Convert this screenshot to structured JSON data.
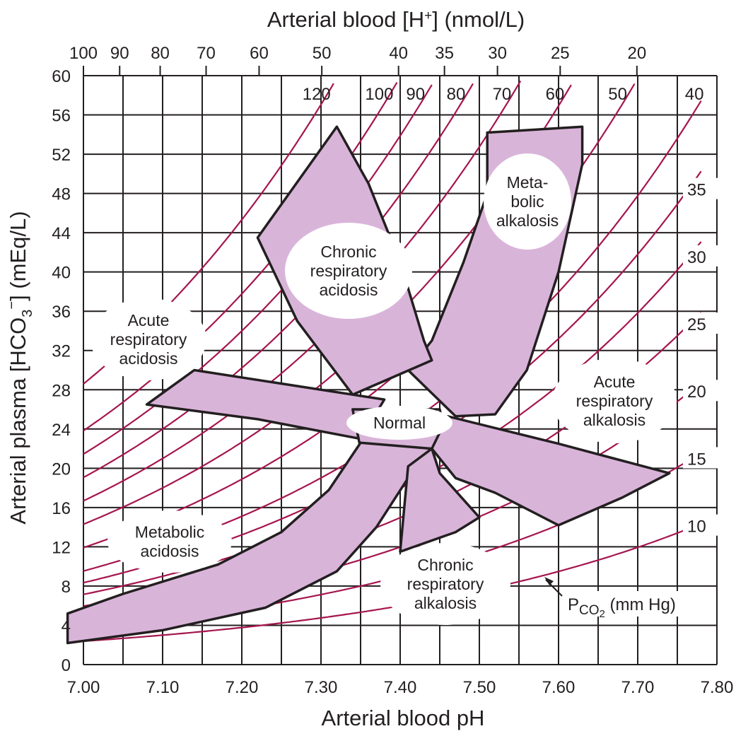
{
  "chart_data": {
    "type": "line",
    "title": "",
    "xlabel": "Arterial blood pH",
    "ylabel": "Arterial plasma [HCO3−] (mEq/L)",
    "ylabel_parts": {
      "main": "Arterial plasma [HCO",
      "sub": "3",
      "sup": "−",
      "end": "] (mEq/L)"
    },
    "x2label": "Arterial blood [H+] (nmol/L)",
    "x2label_parts": {
      "main": "Arterial blood [H",
      "sup": "+",
      "end": "] (nmol/L)"
    },
    "xlim": [
      7.0,
      7.8
    ],
    "ylim": [
      0,
      60
    ],
    "grid": true,
    "x_ticks": [
      "7.00",
      "7.10",
      "7.20",
      "7.30",
      "7.40",
      "7.50",
      "7.60",
      "7.70",
      "7.80"
    ],
    "y_ticks": [
      "0",
      "4",
      "8",
      "12",
      "16",
      "20",
      "24",
      "28",
      "32",
      "36",
      "40",
      "44",
      "48",
      "52",
      "56",
      "60"
    ],
    "h_ticks": [
      {
        "label": "100",
        "value": 100
      },
      {
        "label": "90",
        "value": 90
      },
      {
        "label": "80",
        "value": 80
      },
      {
        "label": "70",
        "value": 70
      },
      {
        "label": "60",
        "value": 60
      },
      {
        "label": "50",
        "value": 50
      },
      {
        "label": "40",
        "value": 40
      },
      {
        "label": "35",
        "value": 35
      },
      {
        "label": "30",
        "value": 30
      },
      {
        "label": "25",
        "value": 25
      },
      {
        "label": "20",
        "value": 20
      }
    ],
    "pco2_isobars_mmHg": [
      120,
      100,
      90,
      80,
      70,
      60,
      50,
      40,
      35,
      30,
      25,
      20,
      15,
      10
    ],
    "isobar_label_top": [
      "120",
      "100",
      "90",
      "80",
      "70",
      "60",
      "50",
      "40"
    ],
    "isobar_label_right": [
      "35",
      "30",
      "25",
      "20",
      "15",
      "10"
    ],
    "isobar_key": {
      "prefix": "P",
      "sub": "CO",
      "sub2": "2",
      "suffix": " (mm Hg)"
    },
    "regions": [
      {
        "label": [
          "Meta-",
          "bolic",
          "alkalosis"
        ],
        "points": [
          [
            7.51,
            54.2
          ],
          [
            7.63,
            54.8
          ],
          [
            7.63,
            51
          ],
          [
            7.6,
            40
          ],
          [
            7.56,
            30
          ],
          [
            7.52,
            25.5
          ],
          [
            7.47,
            25.3
          ],
          [
            7.41,
            30
          ],
          [
            7.44,
            33
          ],
          [
            7.48,
            41
          ],
          [
            7.51,
            48
          ]
        ]
      },
      {
        "label": [
          "Chronic",
          "respiratory",
          "acidosis"
        ],
        "points": [
          [
            7.32,
            54.8
          ],
          [
            7.22,
            43.5
          ],
          [
            7.27,
            35
          ],
          [
            7.34,
            27.5
          ],
          [
            7.44,
            31
          ],
          [
            7.43,
            33
          ],
          [
            7.4,
            41
          ],
          [
            7.36,
            49
          ]
        ]
      },
      {
        "label": [
          "Acute",
          "respiratory",
          "acidosis"
        ],
        "points": [
          [
            7.14,
            30
          ],
          [
            7.08,
            26.5
          ],
          [
            7.22,
            25
          ],
          [
            7.35,
            23
          ],
          [
            7.38,
            27
          ]
        ]
      },
      {
        "label": [
          "Normal"
        ],
        "points": [
          [
            7.34,
            26
          ],
          [
            7.45,
            26
          ],
          [
            7.46,
            22
          ],
          [
            7.35,
            22
          ]
        ]
      },
      {
        "label": [
          "Acute",
          "respiratory",
          "alkalosis"
        ],
        "points": [
          [
            7.46,
            25.3
          ],
          [
            7.6,
            22.5
          ],
          [
            7.67,
            21
          ],
          [
            7.74,
            19.5
          ],
          [
            7.68,
            17
          ],
          [
            7.6,
            14.2
          ],
          [
            7.52,
            17.5
          ],
          [
            7.47,
            19
          ],
          [
            7.44,
            22
          ]
        ]
      },
      {
        "label": [
          "Metabolic",
          "acidosis"
        ],
        "points": [
          [
            6.98,
            5.2
          ],
          [
            7.05,
            7.2
          ],
          [
            7.17,
            10.2
          ],
          [
            7.25,
            13.5
          ],
          [
            7.31,
            17.8
          ],
          [
            7.35,
            22.6
          ],
          [
            7.44,
            22
          ],
          [
            7.41,
            19
          ],
          [
            7.37,
            14
          ],
          [
            7.32,
            9.5
          ],
          [
            7.23,
            5.8
          ],
          [
            7.1,
            3.5
          ],
          [
            6.98,
            2.2
          ]
        ]
      },
      {
        "label": [
          "Chronic",
          "respiratory",
          "alkalosis"
        ],
        "points": [
          [
            7.41,
            20.2
          ],
          [
            7.4,
            11.5
          ],
          [
            7.47,
            13.5
          ],
          [
            7.5,
            15
          ],
          [
            7.45,
            19.5
          ],
          [
            7.44,
            22
          ]
        ]
      }
    ]
  },
  "labels": {
    "bubble_normal": "Normal",
    "bubble_meta": [
      "Meta-",
      "bolic",
      "alkalosis"
    ],
    "bubble_chronic_acid": [
      "Chronic",
      "respiratory",
      "acidosis"
    ],
    "bubble_acute_acid": [
      "Acute",
      "respiratory",
      "acidosis"
    ],
    "bubble_acute_alk": [
      "Acute",
      "respiratory",
      "alkalosis"
    ],
    "bubble_met_acid": [
      "Metabolic",
      "acidosis"
    ],
    "bubble_chronic_alk": [
      "Chronic",
      "respiratory",
      "alkalosis"
    ]
  },
  "colors": {
    "band_fill": "#d9b4d9",
    "isobar": "#a5154e",
    "grid": "#231f20",
    "text": "#231f20"
  }
}
